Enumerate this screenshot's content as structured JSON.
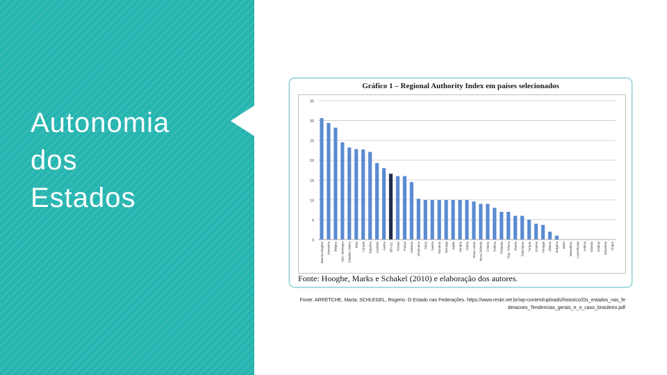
{
  "slide": {
    "title": "Autonomia\ndos\nEstados",
    "accent_color": "#26b5b0"
  },
  "figure": {
    "heading": "Gráfico 1 – Regional Authority Index em países selecionados",
    "source": "Fonte: Hooghe, Marks e Schakel (2010) e elaboração dos autores."
  },
  "caption": "Fonte: ARRETCHE, Marta; SCHLEGEL, Rogerio. O Estado nas Federações. https://www.resbr.net.br/wp-content/uploads/historico/Os_estados_nas_federacoes_Tendencias_gerais_e_o_caso_brasileiro.pdf",
  "chart_data": {
    "type": "bar",
    "title": "Gráfico 1 – Regional Authority Index em países selecionados",
    "xlabel": "",
    "ylabel": "",
    "ylim": [
      0,
      35
    ],
    "yticks": [
      0,
      5,
      10,
      15,
      20,
      25,
      30,
      35
    ],
    "grid": true,
    "legend": "none",
    "bar_color": "#5b8bd1",
    "highlight_color": "#1f2d4a",
    "highlight_category": "BRASIL",
    "categories": [
      "Bosnia-Hergóne",
      "Alemanha",
      "Bélgica",
      "Sérv.-Montegro",
      "Estados Unidos",
      "Itália",
      "Canadá",
      "Espanha",
      "Austrália",
      "Áustria",
      "BRASIL",
      "Rússia",
      "França",
      "Holanda",
      "Dinamarca",
      "Suíça",
      "Suécia",
      "Romênia",
      "Noruega",
      "Japão",
      "Hungria",
      "Grécia",
      "Reino Unido",
      "Nova Zelândia",
      "Croácia",
      "Polônia",
      "Finlândia",
      "Rep. Tcheca",
      "Irlanda",
      "Eslováquia",
      "Turquia",
      "Lituânia",
      "Portugal",
      "Albânia",
      "Bulgária",
      "Malta",
      "Macedônia",
      "Luxemburgo",
      "Letônia",
      "Islândia",
      "Estônia",
      "Eslovênia",
      "Chipre"
    ],
    "values": [
      30.6,
      29.4,
      28.2,
      24.5,
      23.2,
      22.8,
      22.7,
      22.1,
      19.3,
      18.0,
      16.6,
      16.0,
      16.0,
      14.5,
      10.3,
      10.0,
      10.0,
      10.0,
      10.0,
      10.0,
      10.0,
      10.0,
      9.6,
      9.0,
      9.0,
      8.0,
      7.0,
      7.0,
      6.0,
      6.0,
      5.0,
      4.0,
      3.7,
      2.0,
      1.0,
      0,
      0,
      0,
      0,
      0,
      0,
      0,
      0
    ]
  }
}
